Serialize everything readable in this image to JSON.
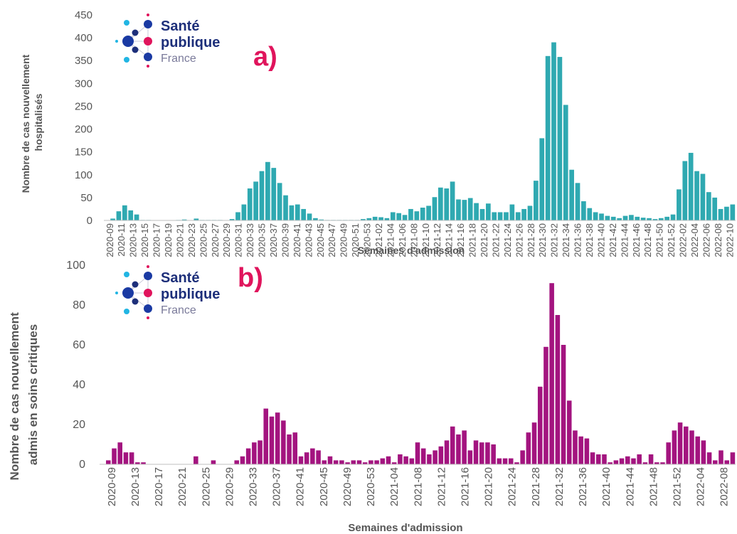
{
  "colors": {
    "panel_a_bars": "#2fa9b1",
    "panel_b_bars": "#a3147f",
    "panel_label": "#e0145c",
    "logo_dark_blue": "#1d2f7a",
    "logo_blue": "#1a3aa3",
    "logo_cyan": "#21b5e3",
    "logo_pink": "#e0145c",
    "axis_text": "#555555"
  },
  "logo": {
    "line1": "Santé",
    "line2": "publique",
    "line3": "France"
  },
  "chart_data": [
    {
      "type": "bar",
      "panel_label": "a)",
      "xlabel": "Semaines d'admission",
      "ylabel_line1": "Nombre de cas nouvellement",
      "ylabel_line2": "hospitalisés",
      "ylim": [
        0,
        450
      ],
      "yticks": [
        0,
        50,
        100,
        150,
        200,
        250,
        300,
        350,
        400,
        450
      ],
      "grid": false,
      "tick_labels": [
        "2020-09",
        "2020-11",
        "2020-13",
        "2020-15",
        "2020-17",
        "2020-19",
        "2020-21",
        "2020-23",
        "2020-25",
        "2020-27",
        "2020-29",
        "2020-31",
        "2020-33",
        "2020-35",
        "2020-37",
        "2020-39",
        "2020-41",
        "2020-43",
        "2020-45",
        "2020-47",
        "2020-49",
        "2020-51",
        "2020-53",
        "2021-02",
        "2021-04",
        "2021-06",
        "2021-08",
        "2021-10",
        "2021-12",
        "2021-14",
        "2021-16",
        "2021-18",
        "2021-20",
        "2021-22",
        "2021-24",
        "2021-26",
        "2021-28",
        "2021-30",
        "2021-32",
        "2021-34",
        "2021-36",
        "2021-38",
        "2021-40",
        "2021-42",
        "2021-44",
        "2021-46",
        "2021-48",
        "2021-50",
        "2021-52",
        "2022-02",
        "2022-04",
        "2022-06",
        "2022-08",
        "2022-10"
      ],
      "values": [
        0,
        4,
        20,
        33,
        22,
        13,
        1,
        1,
        0,
        0,
        0,
        0,
        1,
        2,
        0,
        4,
        1,
        1,
        1,
        1,
        0,
        3,
        18,
        35,
        70,
        85,
        108,
        128,
        115,
        82,
        55,
        33,
        35,
        25,
        15,
        5,
        2,
        1,
        1,
        1,
        1,
        1,
        1,
        3,
        5,
        8,
        7,
        5,
        18,
        16,
        12,
        25,
        20,
        28,
        32,
        51,
        72,
        70,
        85,
        46,
        45,
        49,
        38,
        25,
        37,
        18,
        18,
        18,
        35,
        18,
        25,
        32,
        87,
        180,
        360,
        390,
        358,
        253,
        111,
        82,
        42,
        27,
        18,
        15,
        10,
        8,
        5,
        10,
        12,
        8,
        6,
        5,
        3,
        5,
        8,
        13,
        68,
        130,
        148,
        108,
        102,
        62,
        50,
        25,
        30,
        35
      ]
    },
    {
      "type": "bar",
      "panel_label": "b)",
      "xlabel": "Semaines d'admission",
      "ylabel_line1": "Nombre de cas nouvellement",
      "ylabel_line2": "admis en soins critiques",
      "ylim": [
        0,
        100
      ],
      "yticks": [
        0,
        20,
        40,
        60,
        80,
        100
      ],
      "grid": false,
      "tick_labels": [
        "2020-09",
        "2020-13",
        "2020-17",
        "2020-21",
        "2020-25",
        "2020-29",
        "2020-33",
        "2020-37",
        "2020-41",
        "2020-45",
        "2020-49",
        "2020-53",
        "2021-04",
        "2021-08",
        "2021-12",
        "2021-16",
        "2021-20",
        "2021-24",
        "2021-28",
        "2021-32",
        "2021-36",
        "2021-40",
        "2021-44",
        "2021-48",
        "2021-52",
        "2022-04",
        "2022-08"
      ],
      "values": [
        0,
        2,
        8,
        11,
        6,
        6,
        1,
        1,
        0,
        0,
        0,
        0,
        0,
        0,
        0,
        0,
        4,
        0,
        0,
        2,
        0,
        0,
        0,
        2,
        4,
        8,
        11,
        12,
        28,
        24,
        26,
        22,
        15,
        16,
        4,
        6,
        8,
        7,
        2,
        4,
        2,
        2,
        1,
        2,
        2,
        1,
        2,
        2,
        3,
        4,
        1,
        5,
        4,
        3,
        11,
        8,
        5,
        7,
        9,
        12,
        19,
        15,
        17,
        7,
        12,
        11,
        11,
        10,
        3,
        3,
        3,
        1,
        7,
        16,
        21,
        39,
        59,
        91,
        75,
        60,
        32,
        17,
        14,
        13,
        6,
        5,
        5,
        1,
        2,
        3,
        4,
        3,
        5,
        1,
        5,
        1,
        1,
        11,
        17,
        21,
        19,
        17,
        14,
        12,
        6,
        2,
        7,
        2,
        6
      ]
    }
  ]
}
